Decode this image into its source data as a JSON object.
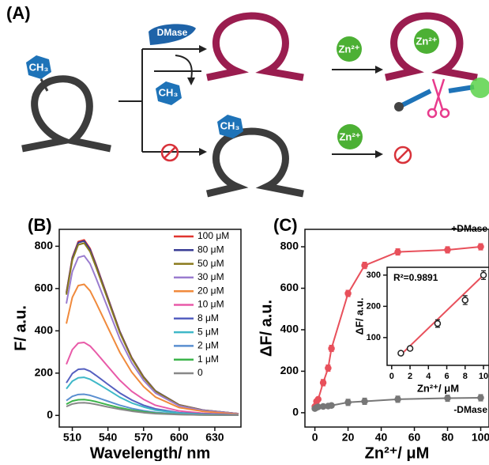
{
  "panel_a": {
    "label": "(A)",
    "methyl": "CH₃",
    "enzyme": "DMase",
    "ion": "Zn²⁺"
  },
  "chart_data": [
    {
      "type": "line",
      "panel_label": "(B)",
      "xlabel": "Wavelength/ nm",
      "ylabel": "F/ a.u.",
      "x": [
        505,
        510,
        515,
        520,
        525,
        530,
        540,
        550,
        560,
        570,
        580,
        600,
        620,
        650
      ],
      "xlim": [
        499,
        652
      ],
      "xticks": [
        510,
        540,
        570,
        600,
        630
      ],
      "ylim": [
        -55,
        880
      ],
      "yticks": [
        0,
        200,
        400,
        600,
        800
      ],
      "legend": "upper right",
      "series": [
        {
          "name": "100 μM",
          "color": "#e0352f",
          "values": [
            581,
            747,
            822,
            830,
            789,
            714,
            556,
            398,
            274,
            183,
            116,
            50,
            25,
            8
          ]
        },
        {
          "name": "80 μM",
          "color": "#3a3d95",
          "values": [
            578,
            743,
            817,
            825,
            784,
            710,
            553,
            396,
            272,
            182,
            116,
            50,
            25,
            8
          ]
        },
        {
          "name": "50 μM",
          "color": "#8a7a1c",
          "values": [
            571,
            734,
            807,
            815,
            774,
            701,
            546,
            391,
            269,
            179,
            114,
            49,
            24,
            8
          ]
        },
        {
          "name": "30 μM",
          "color": "#9a7ccf",
          "values": [
            529,
            680,
            747,
            755,
            717,
            649,
            506,
            362,
            249,
            166,
            106,
            45,
            23,
            8
          ]
        },
        {
          "name": "20 μM",
          "color": "#f08a3c",
          "values": [
            434,
            558,
            614,
            620,
            589,
            533,
            415,
            298,
            205,
            136,
            87,
            37,
            19,
            6
          ]
        },
        {
          "name": "10 μM",
          "color": "#e85aa8",
          "values": [
            242,
            311,
            342,
            345,
            328,
            297,
            231,
            166,
            114,
            76,
            48,
            21,
            10,
            3
          ]
        },
        {
          "name": "8 μM",
          "color": "#5560c0",
          "values": [
            154,
            198,
            218,
            220,
            209,
            189,
            147,
            106,
            73,
            48,
            31,
            13,
            7,
            2
          ]
        },
        {
          "name": "5 μM",
          "color": "#3fb8c8",
          "values": [
            126,
            162,
            178,
            180,
            171,
            155,
            121,
            86,
            59,
            40,
            25,
            11,
            5,
            2
          ]
        },
        {
          "name": "2 μM",
          "color": "#5a8fd0",
          "values": [
            70,
            90,
            99,
            100,
            95,
            86,
            67,
            48,
            33,
            22,
            14,
            6,
            3,
            1
          ]
        },
        {
          "name": "1 μM",
          "color": "#3cb44b",
          "values": [
            53,
            68,
            74,
            75,
            71,
            65,
            50,
            36,
            25,
            17,
            11,
            5,
            2,
            1
          ]
        },
        {
          "name": "0",
          "color": "#888888",
          "values": [
            42,
            54,
            59,
            60,
            57,
            52,
            40,
            29,
            20,
            13,
            8,
            4,
            2,
            1
          ]
        }
      ]
    },
    {
      "type": "scatter",
      "panel_label": "(C)",
      "xlabel": "Zn²⁺/ μM",
      "ylabel": "ΔF/ a.u.",
      "x": [
        0,
        1,
        2,
        5,
        8,
        10,
        20,
        30,
        50,
        80,
        100
      ],
      "xlim": [
        -6,
        105
      ],
      "xticks": [
        0,
        20,
        40,
        60,
        80,
        100
      ],
      "ylim": [
        -69,
        884
      ],
      "yticks": [
        0,
        200,
        400,
        600,
        800
      ],
      "legend": "series end",
      "series": [
        {
          "name": "+DMase",
          "color": "#e8505b",
          "values": [
            30,
            55,
            65,
            145,
            215,
            310,
            575,
            710,
            775,
            785,
            800
          ],
          "errors": [
            5,
            6,
            6,
            15,
            15,
            15,
            15,
            15,
            15,
            15,
            15
          ]
        },
        {
          "name": "-DMase",
          "color": "#777777",
          "values": [
            20,
            25,
            28,
            30,
            32,
            35,
            50,
            55,
            65,
            70,
            72
          ],
          "errors": [
            4,
            4,
            4,
            4,
            4,
            4,
            15,
            15,
            15,
            15,
            15
          ]
        }
      ]
    },
    {
      "type": "scatter",
      "annotation": "R²=0.9891",
      "xlabel": "Zn²⁺/ μM",
      "ylabel": "ΔF/ a.u.",
      "x": [
        1,
        2,
        5,
        8,
        10
      ],
      "xlim": [
        -0.5,
        10.6
      ],
      "xticks": [
        0,
        2,
        4,
        6,
        8,
        10
      ],
      "ylim": [
        11,
        325
      ],
      "yticks": [
        100,
        200,
        300
      ],
      "fit": {
        "color": "#e8505b",
        "x": [
          1,
          10
        ],
        "values": [
          45,
          300
        ]
      },
      "series": [
        {
          "color": "#222222",
          "values": [
            50,
            65,
            145,
            220,
            300
          ],
          "errors": [
            4,
            5,
            12,
            14,
            14
          ]
        }
      ]
    }
  ]
}
